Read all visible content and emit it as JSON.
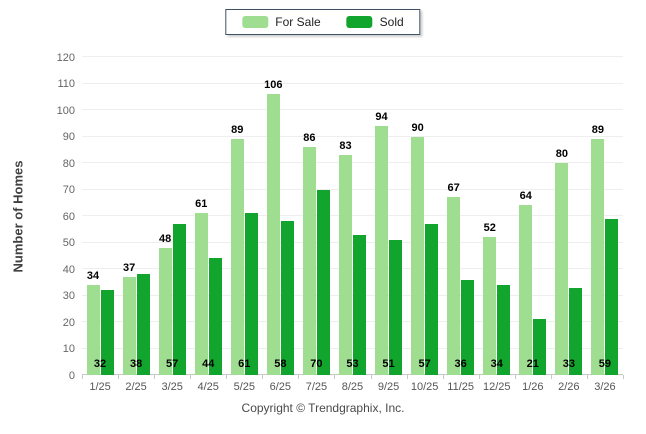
{
  "footer": {
    "copyright": "Copyright © Trendgraphix, Inc."
  },
  "colors": {
    "for_sale": "#9FDE90",
    "sold": "#11A52E",
    "grid": "#eeeeee",
    "axis": "#c9c9c9",
    "legend_border": "#3e5266"
  },
  "chart_data": {
    "type": "bar",
    "title": "",
    "categories": [
      "1/25",
      "2/25",
      "3/25",
      "4/25",
      "5/25",
      "6/25",
      "7/25",
      "8/25",
      "9/25",
      "10/25",
      "11/25",
      "12/25",
      "1/26",
      "2/26",
      "3/26"
    ],
    "series": [
      {
        "name": "For Sale",
        "color": "#9FDE90",
        "values": [
          34,
          37,
          48,
          61,
          89,
          106,
          86,
          83,
          94,
          90,
          67,
          52,
          64,
          80,
          89
        ]
      },
      {
        "name": "Sold",
        "color": "#11A52E",
        "values": [
          32,
          38,
          57,
          44,
          61,
          58,
          70,
          53,
          51,
          57,
          36,
          34,
          21,
          33,
          59
        ]
      }
    ],
    "xlabel": "",
    "ylabel": "Number of Homes",
    "ylim": [
      0,
      120
    ],
    "ytick_step": 10,
    "grid": true,
    "legend_position": "top-center",
    "value_label_style": {
      "for_sale": "above-bar",
      "sold": "inside-bar-bottom"
    }
  }
}
